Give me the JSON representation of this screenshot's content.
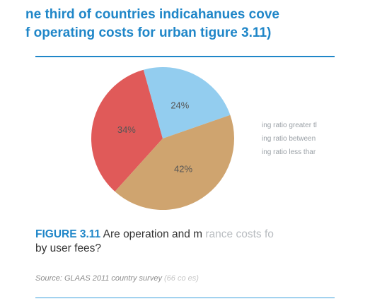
{
  "headline": {
    "line1": "ne third of countries indicahanues cove",
    "line2": "f operating costs for urban  tigure 3.11)"
  },
  "chart_data": {
    "type": "pie",
    "slices": [
      {
        "label": "34%",
        "value": 34,
        "color": "#e05a59"
      },
      {
        "label": "24%",
        "value": 24,
        "color": "#93cdef"
      },
      {
        "label": "42%",
        "value": 42,
        "color": "#cfa46f"
      }
    ],
    "legend": [
      "ing ratio greater tl",
      "ing ratio between",
      "ing ratio less thar"
    ]
  },
  "caption": {
    "figure": "FIGURE 3.11",
    "text": " Are operation and m",
    "faint": " rance costs fo",
    "line2": "by user fees?"
  },
  "source": {
    "text": "Source: GLAAS 2011 country survey",
    "faint": " (66 co es)"
  }
}
